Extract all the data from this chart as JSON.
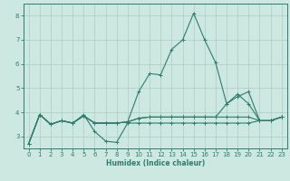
{
  "title": "",
  "xlabel": "Humidex (Indice chaleur)",
  "bg_color": "#cde8e0",
  "grid_color": "#aaccc4",
  "line_color": "#2e7d6e",
  "xlim": [
    -0.5,
    23.5
  ],
  "ylim": [
    2.5,
    8.5
  ],
  "xticks": [
    0,
    1,
    2,
    3,
    4,
    5,
    6,
    7,
    8,
    9,
    10,
    11,
    12,
    13,
    14,
    15,
    16,
    17,
    18,
    19,
    20,
    21,
    22,
    23
  ],
  "yticks": [
    3,
    4,
    5,
    6,
    7,
    8
  ],
  "series": [
    {
      "x": [
        0,
        1,
        2,
        3,
        4,
        5,
        6,
        7,
        8,
        9,
        10,
        11,
        12,
        13,
        14,
        15,
        16,
        17,
        18,
        19,
        20,
        21,
        22,
        23
      ],
      "y": [
        2.7,
        3.9,
        3.5,
        3.65,
        3.55,
        3.85,
        3.55,
        3.55,
        3.55,
        3.6,
        3.75,
        3.8,
        3.8,
        3.8,
        3.8,
        3.8,
        3.8,
        3.8,
        3.8,
        3.8,
        3.8,
        3.65,
        3.65,
        3.8
      ]
    },
    {
      "x": [
        0,
        1,
        2,
        3,
        4,
        5,
        6,
        7,
        8,
        9,
        10,
        11,
        12,
        13,
        14,
        15,
        16,
        17,
        18,
        19,
        20,
        21,
        22,
        23
      ],
      "y": [
        2.7,
        3.9,
        3.5,
        3.65,
        3.55,
        3.85,
        3.55,
        3.55,
        3.55,
        3.6,
        4.85,
        5.6,
        5.55,
        6.6,
        7.0,
        8.1,
        7.0,
        6.05,
        4.35,
        4.75,
        4.35,
        3.65,
        3.65,
        3.8
      ]
    },
    {
      "x": [
        0,
        1,
        2,
        3,
        4,
        5,
        6,
        7,
        8,
        9,
        10,
        11,
        12,
        13,
        14,
        15,
        16,
        17,
        18,
        19,
        20,
        21,
        22,
        23
      ],
      "y": [
        2.7,
        3.9,
        3.5,
        3.65,
        3.55,
        3.9,
        3.2,
        2.8,
        2.75,
        3.55,
        3.55,
        3.55,
        3.55,
        3.55,
        3.55,
        3.55,
        3.55,
        3.55,
        3.55,
        3.55,
        3.55,
        3.65,
        3.65,
        3.8
      ]
    },
    {
      "x": [
        0,
        1,
        2,
        3,
        4,
        5,
        6,
        7,
        8,
        9,
        10,
        11,
        12,
        13,
        14,
        15,
        16,
        17,
        18,
        19,
        20,
        21,
        22,
        23
      ],
      "y": [
        2.7,
        3.9,
        3.5,
        3.65,
        3.55,
        3.85,
        3.55,
        3.55,
        3.55,
        3.6,
        3.75,
        3.8,
        3.8,
        3.8,
        3.8,
        3.8,
        3.8,
        3.8,
        4.35,
        4.65,
        4.85,
        3.65,
        3.65,
        3.8
      ]
    }
  ]
}
